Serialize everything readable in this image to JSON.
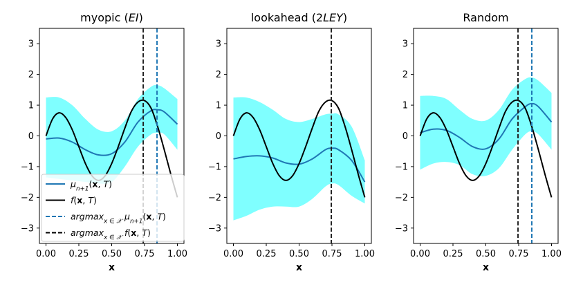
{
  "chart_data": [
    {
      "type": "line",
      "title_parts": [
        {
          "t": "myopic ("
        },
        {
          "t": "EI",
          "italic": true
        },
        {
          "t": ")"
        }
      ],
      "xlabel": "x",
      "xlim": [
        -0.05,
        1.05
      ],
      "ylim": [
        -3.5,
        3.5
      ],
      "xticks": [
        0.0,
        0.25,
        0.5,
        0.75,
        1.0
      ],
      "xtick_labels": [
        "0.00",
        "0.25",
        "0.50",
        "0.75",
        "1.00"
      ],
      "yticks": [
        -3,
        -2,
        -1,
        0,
        1,
        2,
        3
      ],
      "ytick_labels": [
        "−3",
        "−2",
        "−1",
        "0",
        "1",
        "2",
        "3"
      ],
      "x": [
        0.0,
        0.1,
        0.2,
        0.3,
        0.4,
        0.5,
        0.6,
        0.7,
        0.8,
        0.85,
        0.9,
        1.0
      ],
      "series": [
        {
          "name": "mu",
          "color": "#1f77b4",
          "values": [
            -0.1,
            -0.07,
            -0.2,
            -0.45,
            -0.62,
            -0.58,
            -0.2,
            0.45,
            0.82,
            0.85,
            0.78,
            0.38
          ]
        },
        {
          "name": "band_upper",
          "color": "#00ffff",
          "values": [
            1.25,
            1.25,
            1.0,
            0.55,
            0.2,
            0.15,
            0.5,
            1.2,
            1.6,
            1.65,
            1.55,
            1.2
          ]
        },
        {
          "name": "band_lower",
          "color": "#00ffff",
          "values": [
            -1.35,
            -1.4,
            -1.45,
            -1.5,
            -1.55,
            -1.5,
            -1.0,
            -0.35,
            0.05,
            0.1,
            0.05,
            -0.45
          ]
        }
      ],
      "vlines": [
        {
          "name": "true-argmax",
          "x": 0.74,
          "color": "#222222"
        },
        {
          "name": "model-argmax",
          "x": 0.845,
          "color": "#1f77b4"
        }
      ],
      "legend": {
        "position": "lower-left",
        "entries": [
          {
            "label_parts": [
              {
                "t": "μ",
                "italic": true
              },
              {
                "t": "n+1",
                "sub": true,
                "italic": true
              },
              {
                "t": "("
              },
              {
                "t": "x",
                "bold": true
              },
              {
                "t": ", "
              },
              {
                "t": "T",
                "italic": true
              },
              {
                "t": ")"
              }
            ],
            "color": "#1f77b4",
            "style": "solid"
          },
          {
            "label_parts": [
              {
                "t": "f",
                "italic": true
              },
              {
                "t": "("
              },
              {
                "t": "x",
                "bold": true
              },
              {
                "t": ", "
              },
              {
                "t": "T",
                "italic": true
              },
              {
                "t": ")"
              }
            ],
            "color": "#000000",
            "style": "solid"
          },
          {
            "label_parts": [
              {
                "t": "argmax",
                "italic": true
              },
              {
                "t": "x ∈ 𝒳",
                "sub": true,
                "italic": true
              },
              {
                "t": " "
              },
              {
                "t": "μ",
                "italic": true
              },
              {
                "t": "n+1",
                "sub": true,
                "italic": true
              },
              {
                "t": "("
              },
              {
                "t": "x",
                "bold": true
              },
              {
                "t": ", "
              },
              {
                "t": "T",
                "italic": true
              },
              {
                "t": ")"
              }
            ],
            "color": "#1f77b4",
            "style": "dashed"
          },
          {
            "label_parts": [
              {
                "t": "argmax",
                "italic": true
              },
              {
                "t": "x ∈ 𝒳",
                "sub": true,
                "italic": true
              },
              {
                "t": " "
              },
              {
                "t": "f",
                "italic": true
              },
              {
                "t": "("
              },
              {
                "t": "x",
                "bold": true
              },
              {
                "t": ", "
              },
              {
                "t": "T",
                "italic": true
              },
              {
                "t": ")"
              }
            ],
            "color": "#000000",
            "style": "dashed"
          }
        ]
      }
    },
    {
      "type": "line",
      "title_parts": [
        {
          "t": "lookahead (2"
        },
        {
          "t": "LEY",
          "italic": true
        },
        {
          "t": ")"
        }
      ],
      "xlabel": "x",
      "xlim": [
        -0.05,
        1.05
      ],
      "ylim": [
        -3.5,
        3.5
      ],
      "xticks": [
        0.0,
        0.25,
        0.5,
        0.75,
        1.0
      ],
      "xtick_labels": [
        "0.00",
        "0.25",
        "0.50",
        "0.75",
        "1.00"
      ],
      "yticks": [
        -3,
        -2,
        -1,
        0,
        1,
        2,
        3
      ],
      "ytick_labels": [
        "−3",
        "−2",
        "−1",
        "0",
        "1",
        "2",
        "3"
      ],
      "x": [
        0.0,
        0.1,
        0.2,
        0.3,
        0.4,
        0.5,
        0.6,
        0.7,
        0.75,
        0.8,
        0.9,
        1.0
      ],
      "series": [
        {
          "name": "mu",
          "color": "#1f77b4",
          "values": [
            -0.75,
            -0.67,
            -0.65,
            -0.72,
            -0.88,
            -0.92,
            -0.75,
            -0.45,
            -0.4,
            -0.45,
            -0.8,
            -1.5
          ]
        },
        {
          "name": "band_upper",
          "color": "#00ffff",
          "values": [
            1.25,
            1.25,
            1.1,
            0.85,
            0.55,
            0.45,
            0.55,
            0.7,
            0.72,
            0.7,
            0.3,
            -0.8
          ]
        },
        {
          "name": "band_lower",
          "color": "#00ffff",
          "values": [
            -2.75,
            -2.6,
            -2.4,
            -2.3,
            -2.3,
            -2.3,
            -2.05,
            -1.65,
            -1.55,
            -1.6,
            -1.95,
            -2.2
          ]
        }
      ],
      "vlines": [
        {
          "name": "true-argmax",
          "x": 0.745,
          "color": "#222222"
        }
      ]
    },
    {
      "type": "line",
      "title_parts": [
        {
          "t": "Random"
        }
      ],
      "xlabel": "x",
      "xlim": [
        -0.05,
        1.05
      ],
      "ylim": [
        -3.5,
        3.5
      ],
      "xticks": [
        0.0,
        0.25,
        0.5,
        0.75,
        1.0
      ],
      "xtick_labels": [
        "0.00",
        "0.25",
        "0.50",
        "0.75",
        "1.00"
      ],
      "yticks": [
        -3,
        -2,
        -1,
        0,
        1,
        2,
        3
      ],
      "ytick_labels": [
        "−3",
        "−2",
        "−1",
        "0",
        "1",
        "2",
        "3"
      ],
      "x": [
        0.0,
        0.1,
        0.2,
        0.3,
        0.4,
        0.5,
        0.6,
        0.7,
        0.8,
        0.85,
        0.9,
        1.0
      ],
      "series": [
        {
          "name": "mu",
          "color": "#1f77b4",
          "values": [
            0.1,
            0.22,
            0.18,
            -0.05,
            -0.35,
            -0.42,
            -0.1,
            0.55,
            0.95,
            1.05,
            0.95,
            0.45
          ]
        },
        {
          "name": "band_upper",
          "color": "#00ffff",
          "values": [
            1.3,
            1.3,
            1.2,
            0.85,
            0.55,
            0.5,
            0.85,
            1.5,
            1.85,
            1.9,
            1.8,
            1.4
          ]
        },
        {
          "name": "band_lower",
          "color": "#00ffff",
          "values": [
            -1.1,
            -0.9,
            -0.85,
            -0.95,
            -1.25,
            -1.3,
            -1.05,
            -0.45,
            0.05,
            0.15,
            0.05,
            -0.45
          ]
        }
      ],
      "vlines": [
        {
          "name": "true-argmax",
          "x": 0.745,
          "color": "#222222"
        },
        {
          "name": "model-argmax",
          "x": 0.85,
          "color": "#1f77b4"
        }
      ]
    }
  ],
  "truth_curve": {
    "name": "f",
    "color": "#000000",
    "x": [
      0.0,
      0.05,
      0.1,
      0.15,
      0.2,
      0.25,
      0.3,
      0.35,
      0.4,
      0.45,
      0.5,
      0.55,
      0.6,
      0.65,
      0.7,
      0.75,
      0.8,
      0.85,
      0.9,
      0.95,
      1.0
    ],
    "values": [
      0.0,
      0.55,
      0.75,
      0.6,
      0.2,
      -0.35,
      -0.9,
      -1.3,
      -1.45,
      -1.3,
      -0.9,
      -0.35,
      0.25,
      0.8,
      1.1,
      1.15,
      0.9,
      0.3,
      -0.45,
      -1.25,
      -2.0
    ]
  }
}
